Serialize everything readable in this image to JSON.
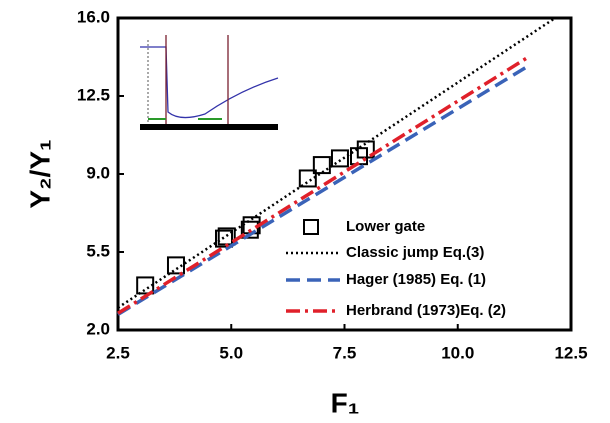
{
  "chart_data": {
    "type": "scatter-line",
    "xlabel": "F₁",
    "ylabel": "Y₂/Y₁",
    "xlim": [
      2.5,
      12.5
    ],
    "xticks": [
      2.5,
      {
        "value": 5,
        "label": "5.0"
      },
      7.5,
      {
        "value": 10,
        "label": "10.0"
      },
      12.5
    ],
    "ylim": [
      2,
      16
    ],
    "yticks": [
      {
        "value": 2,
        "label": "2.0"
      },
      5.5,
      {
        "value": 9,
        "label": "9.0"
      },
      12.5,
      {
        "value": 16,
        "label": "16.0"
      }
    ],
    "series": [
      {
        "name": "Lower gate",
        "kind": "markers",
        "color": "#000000",
        "x": [
          3.1,
          3.78,
          4.84,
          4.9,
          5.41,
          5.45,
          6.69,
          7.0,
          7.4,
          7.82,
          7.97
        ],
        "values": [
          4.0,
          4.9,
          6.1,
          6.2,
          6.5,
          6.7,
          8.8,
          9.4,
          9.7,
          9.8,
          10.1
        ]
      },
      {
        "name": "Classic jump Eq.(3)",
        "kind": "dotted",
        "color": "#000000",
        "x": [
          2.5,
          12.15
        ],
        "values": [
          3.0,
          16.0
        ]
      },
      {
        "name": "Hager (1985) Eq. (1)",
        "kind": "dashed",
        "color": "#3a63b8",
        "x": [
          2.5,
          11.6
        ],
        "values": [
          2.7,
          13.9
        ]
      },
      {
        "name": "Herbrand (1973)Eq. (2)",
        "kind": "dashdot",
        "color": "#e0202a",
        "x": [
          2.5,
          11.6
        ],
        "values": [
          2.75,
          14.3
        ]
      }
    ]
  }
}
